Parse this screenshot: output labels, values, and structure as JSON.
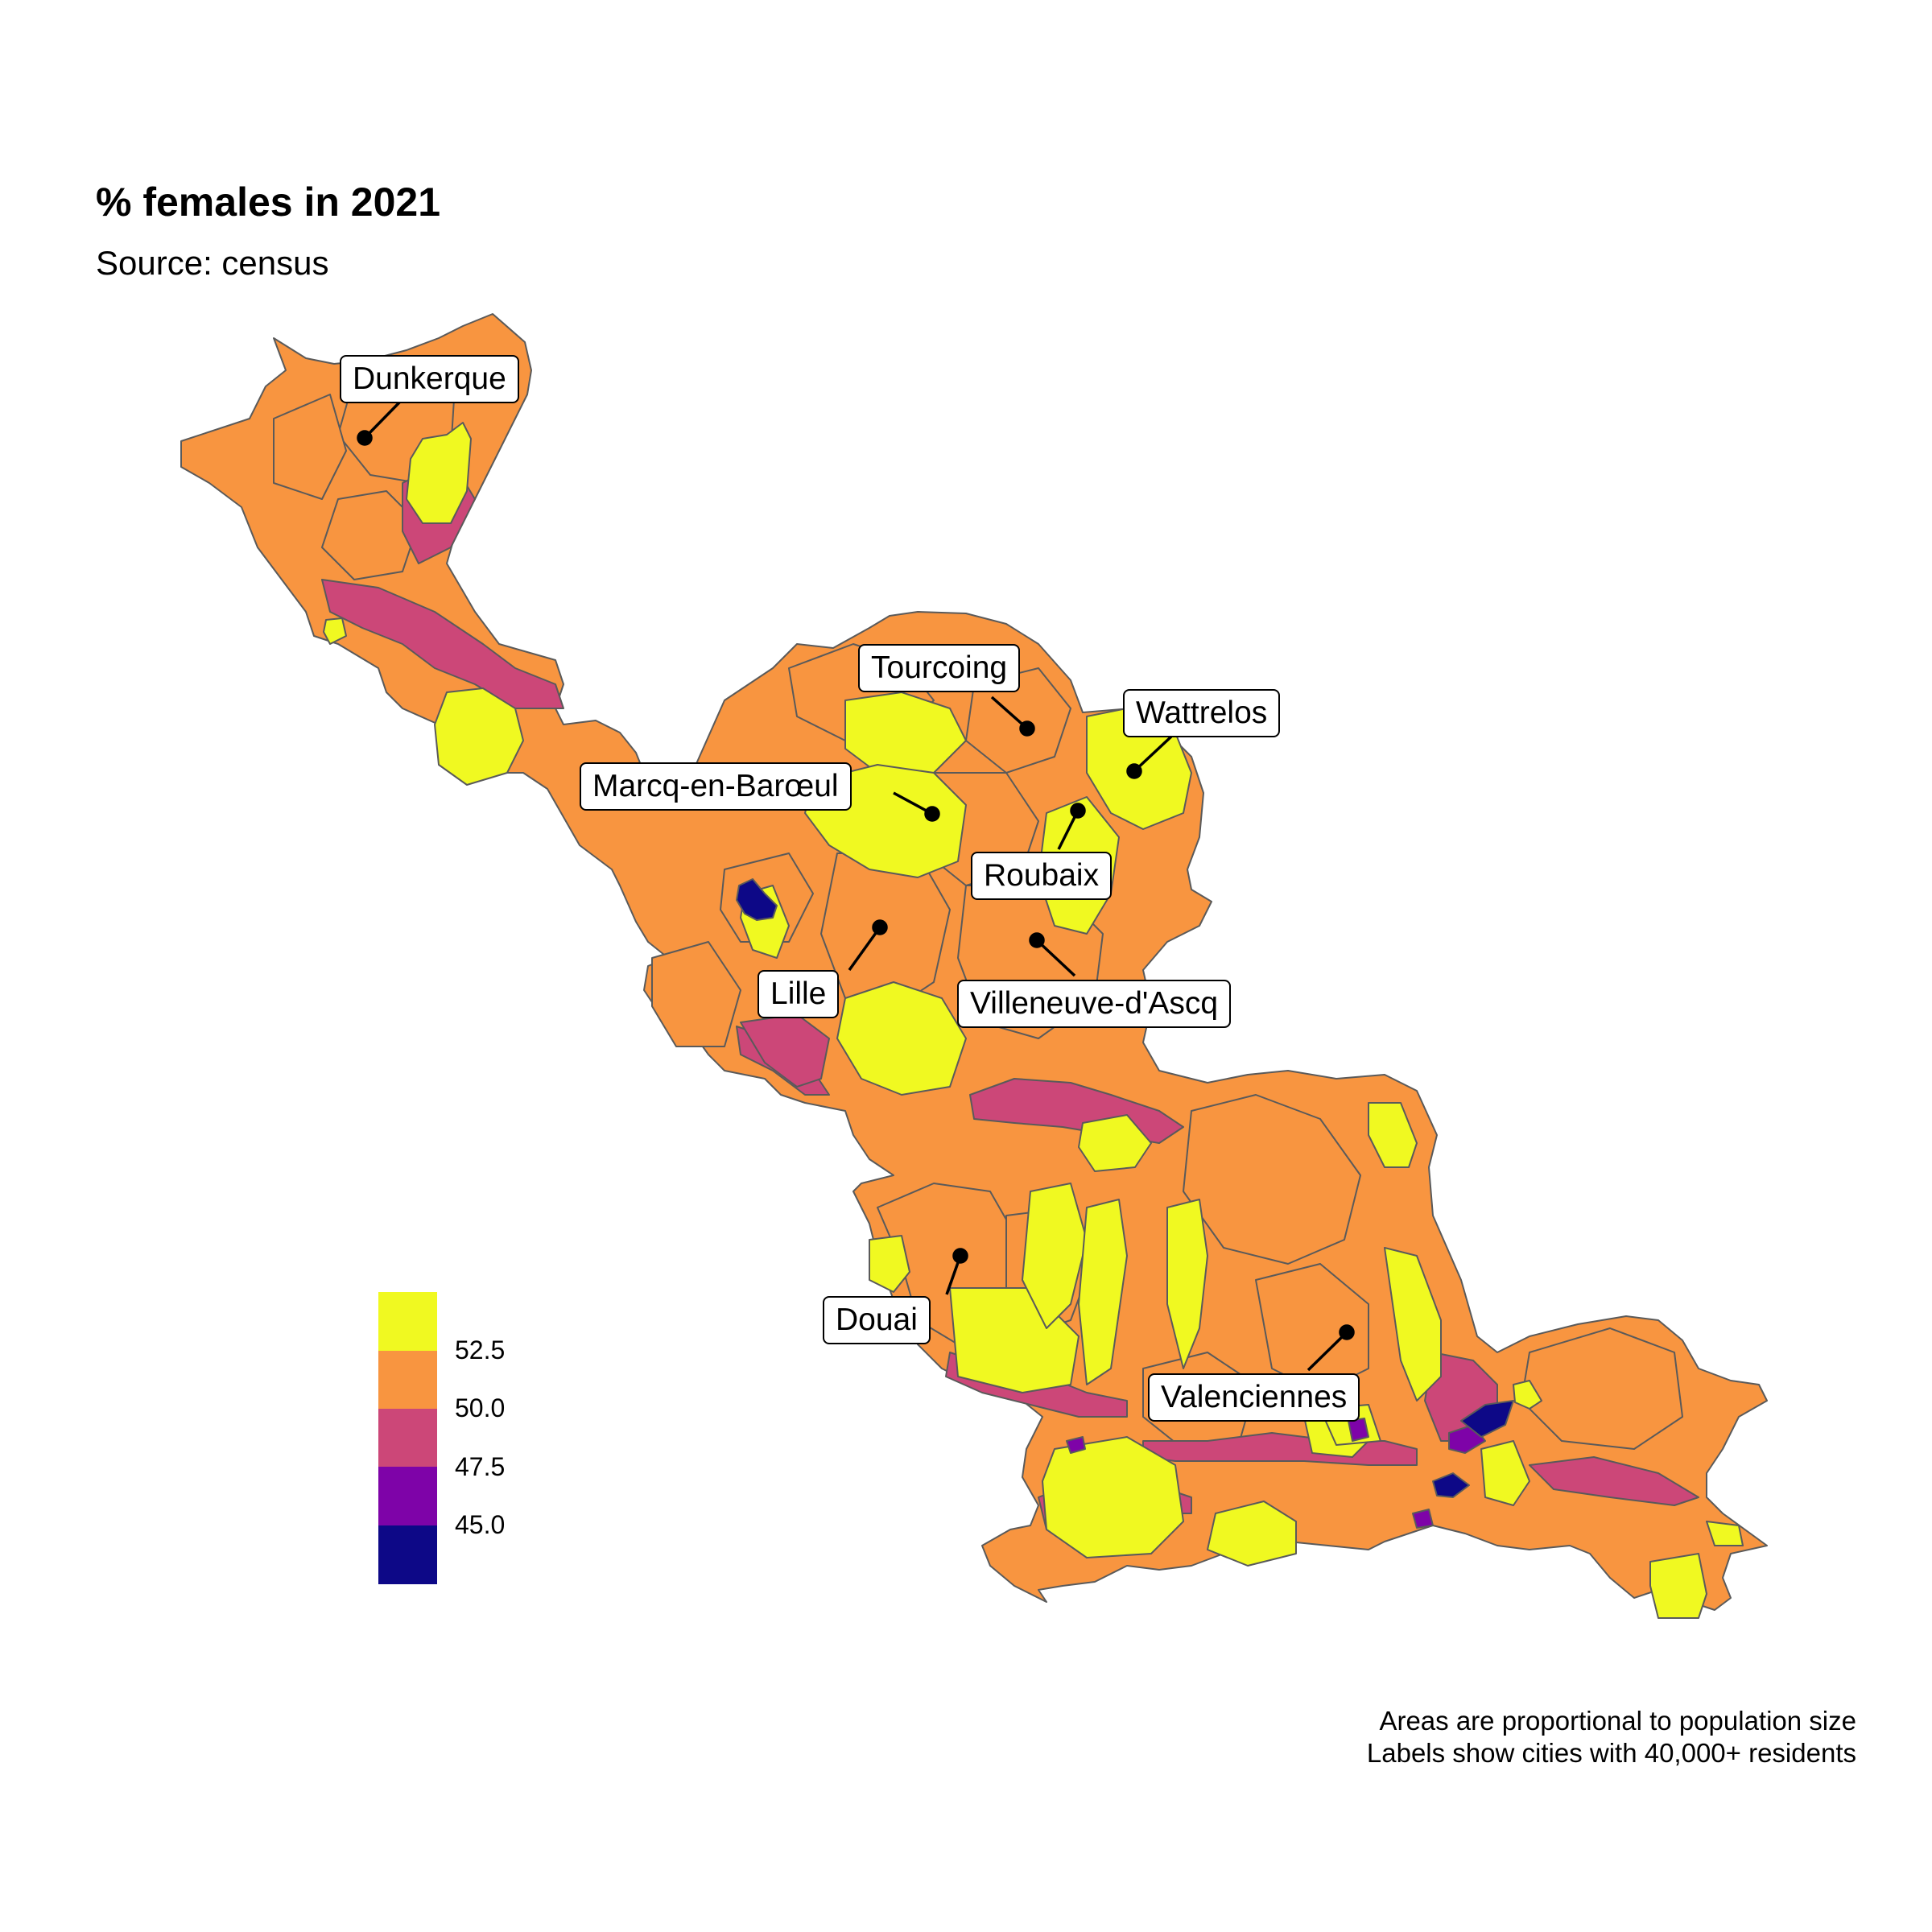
{
  "header": {
    "title": "% females in 2021",
    "subtitle": "Source: census"
  },
  "caption": {
    "line1": "Areas are proportional to population size",
    "line2": "Labels show cities with 40,000+ residents"
  },
  "legend": {
    "bins": [
      {
        "color": "#f0f921"
      },
      {
        "color": "#f89540"
      },
      {
        "color": "#cc4778"
      },
      {
        "color": "#7e03a8"
      },
      {
        "color": "#0d0887"
      }
    ],
    "labels": [
      "52.5",
      "50.0",
      "47.5",
      "45.0"
    ]
  },
  "colors": {
    "high": "#f0f921",
    "mid_high": "#f89540",
    "mid": "#cc4778",
    "low": "#7e03a8",
    "lowest": "#0d0887",
    "border": "#5a5a5a"
  },
  "cities": [
    {
      "name": "Dunkerque"
    },
    {
      "name": "Tourcoing"
    },
    {
      "name": "Wattrelos"
    },
    {
      "name": "Marcq-en-Barœul"
    },
    {
      "name": "Roubaix"
    },
    {
      "name": "Lille"
    },
    {
      "name": "Villeneuve-d'Ascq"
    },
    {
      "name": "Douai"
    },
    {
      "name": "Valenciennes"
    }
  ]
}
